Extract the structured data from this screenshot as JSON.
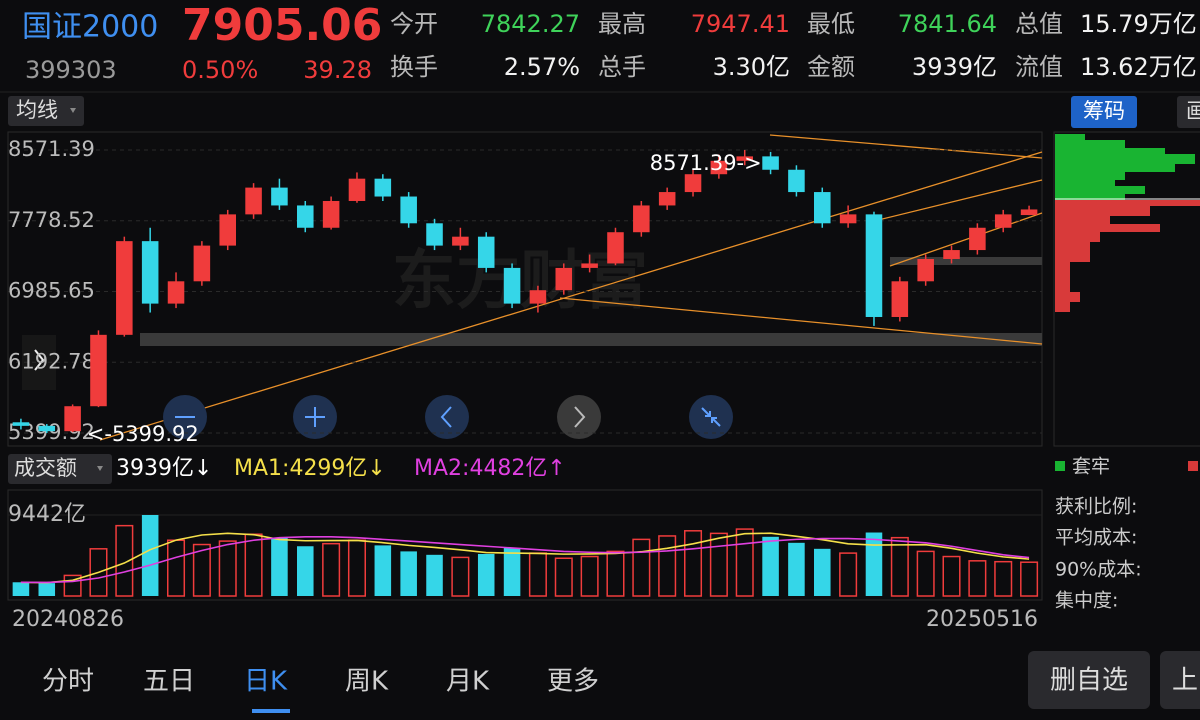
{
  "header": {
    "name": "国证2000",
    "code": "399303",
    "price": "7905.06",
    "change_pct": "0.50%",
    "change": "39.28",
    "fields": [
      {
        "label": "今开",
        "value": "7842.27"
      },
      {
        "label": "最高",
        "value": "7947.41"
      },
      {
        "label": "最低",
        "value": "7841.64"
      },
      {
        "label": "总值",
        "value": "15.79万亿"
      },
      {
        "label": "换手",
        "value": "2.57%"
      },
      {
        "label": "总手",
        "value": "3.30亿"
      },
      {
        "label": "金额",
        "value": "3939亿"
      },
      {
        "label": "流值",
        "value": "13.62万亿"
      }
    ]
  },
  "chart_data": [
    {
      "type": "candlestick",
      "ma_button": "均线",
      "max_label": "8571.39->",
      "min_label": "<-5399.92",
      "up_color": "#f03c3c",
      "down_color": "#35d6e8",
      "ylim": [
        5399.92,
        8571.39
      ],
      "yticks": [
        5399.92,
        6192.78,
        6985.65,
        7778.52,
        8571.39
      ],
      "categories": [
        "20240826",
        null,
        null,
        null,
        null,
        null,
        null,
        null,
        null,
        null,
        null,
        null,
        null,
        null,
        null,
        null,
        null,
        null,
        null,
        null,
        null,
        null,
        null,
        null,
        null,
        null,
        null,
        null,
        null,
        null,
        null,
        null,
        null,
        null,
        null,
        null,
        null,
        null,
        null,
        "20250516"
      ],
      "open": [
        5520,
        5480,
        5420,
        5700,
        6500,
        7550,
        6850,
        7100,
        7500,
        7850,
        8150,
        7950,
        7700,
        8000,
        8250,
        8050,
        7750,
        7500,
        7600,
        7250,
        6850,
        7000,
        7250,
        7300,
        7650,
        7950,
        8100,
        8300,
        8450,
        8500,
        8350,
        8100,
        7750,
        7850,
        6700,
        7100,
        7350,
        7450,
        7700,
        7842.27
      ],
      "high": [
        5560,
        5500,
        5720,
        6550,
        7600,
        7700,
        7200,
        7550,
        7900,
        8200,
        8250,
        8000,
        8050,
        8320,
        8300,
        8100,
        7800,
        7700,
        7650,
        7300,
        7050,
        7300,
        7400,
        7700,
        8000,
        8150,
        8350,
        8520,
        8571.39,
        8550,
        8400,
        8150,
        7950,
        7880,
        7150,
        7400,
        7500,
        7750,
        7900,
        7947.41
      ],
      "low": [
        5440,
        5399.92,
        5410,
        5690,
        6480,
        6750,
        6800,
        7050,
        7450,
        7800,
        7900,
        7650,
        7680,
        7980,
        8000,
        7700,
        7450,
        7450,
        7200,
        6800,
        6750,
        6950,
        7200,
        7280,
        7600,
        7900,
        8050,
        8250,
        8400,
        8300,
        8050,
        7700,
        7700,
        6600,
        6650,
        7050,
        7300,
        7400,
        7650,
        7841.64
      ],
      "close": [
        5480,
        5420,
        5700,
        6500,
        7550,
        6850,
        7100,
        7500,
        7850,
        8150,
        7950,
        7700,
        8000,
        8250,
        8050,
        7750,
        7500,
        7600,
        7250,
        6850,
        7000,
        7250,
        7300,
        7650,
        7950,
        8100,
        8300,
        8450,
        8500,
        8350,
        8100,
        7750,
        7850,
        6700,
        7100,
        7350,
        7450,
        7700,
        7850,
        7905.06
      ]
    },
    {
      "type": "bar",
      "title": "成交额",
      "current_label": "3939亿↓",
      "ylim": [
        0,
        9442
      ],
      "yticks": [
        {
          "value": 9442,
          "label": "9442亿"
        }
      ],
      "values": [
        1600,
        1500,
        2400,
        5500,
        8200,
        9442,
        6500,
        6000,
        6400,
        7200,
        6800,
        5800,
        6100,
        6500,
        5900,
        5200,
        4800,
        4500,
        4900,
        5600,
        5000,
        4400,
        4600,
        5200,
        6600,
        7000,
        7600,
        7300,
        7800,
        6900,
        6200,
        5500,
        5000,
        7400,
        6800,
        5200,
        4600,
        4100,
        4000,
        3939
      ],
      "series": [
        {
          "name": "MA1:4299亿↓",
          "color": "#f5e04a",
          "values": [
            1600,
            1550,
            1830,
            2750,
            3840,
            5400,
            6510,
            7110,
            7310,
            7150,
            6580,
            6440,
            6460,
            6480,
            6220,
            5900,
            5660,
            5380,
            5060,
            5000,
            4960,
            4880,
            4900,
            4960,
            5160,
            5560,
            6080,
            6740,
            7260,
            7320,
            6960,
            6560,
            6080,
            5940,
            5960,
            5980,
            5560,
            5000,
            4560,
            4299
          ]
        },
        {
          "name": "MA2:4482亿↑",
          "color": "#e040e0",
          "values": [
            1600,
            1580,
            1700,
            2100,
            2800,
            3600,
            4500,
            5300,
            6000,
            6500,
            6800,
            6900,
            6900,
            6800,
            6600,
            6400,
            6200,
            6000,
            5800,
            5600,
            5400,
            5200,
            5100,
            5050,
            5100,
            5250,
            5500,
            5800,
            6100,
            6400,
            6600,
            6700,
            6700,
            6600,
            6400,
            6200,
            5800,
            5300,
            4800,
            4482
          ]
        }
      ]
    }
  ],
  "chip_panel": {
    "tab": "筹码",
    "draw_tab": "画",
    "legend": "套牢",
    "stats": [
      "获利比例:",
      "平均成本:",
      "90%成本:",
      "集中度:"
    ]
  },
  "tabs": [
    "分时",
    "五日",
    "日K",
    "周K",
    "月K",
    "更多"
  ],
  "active_tab": 2,
  "buttons": [
    "删自选",
    "上"
  ]
}
